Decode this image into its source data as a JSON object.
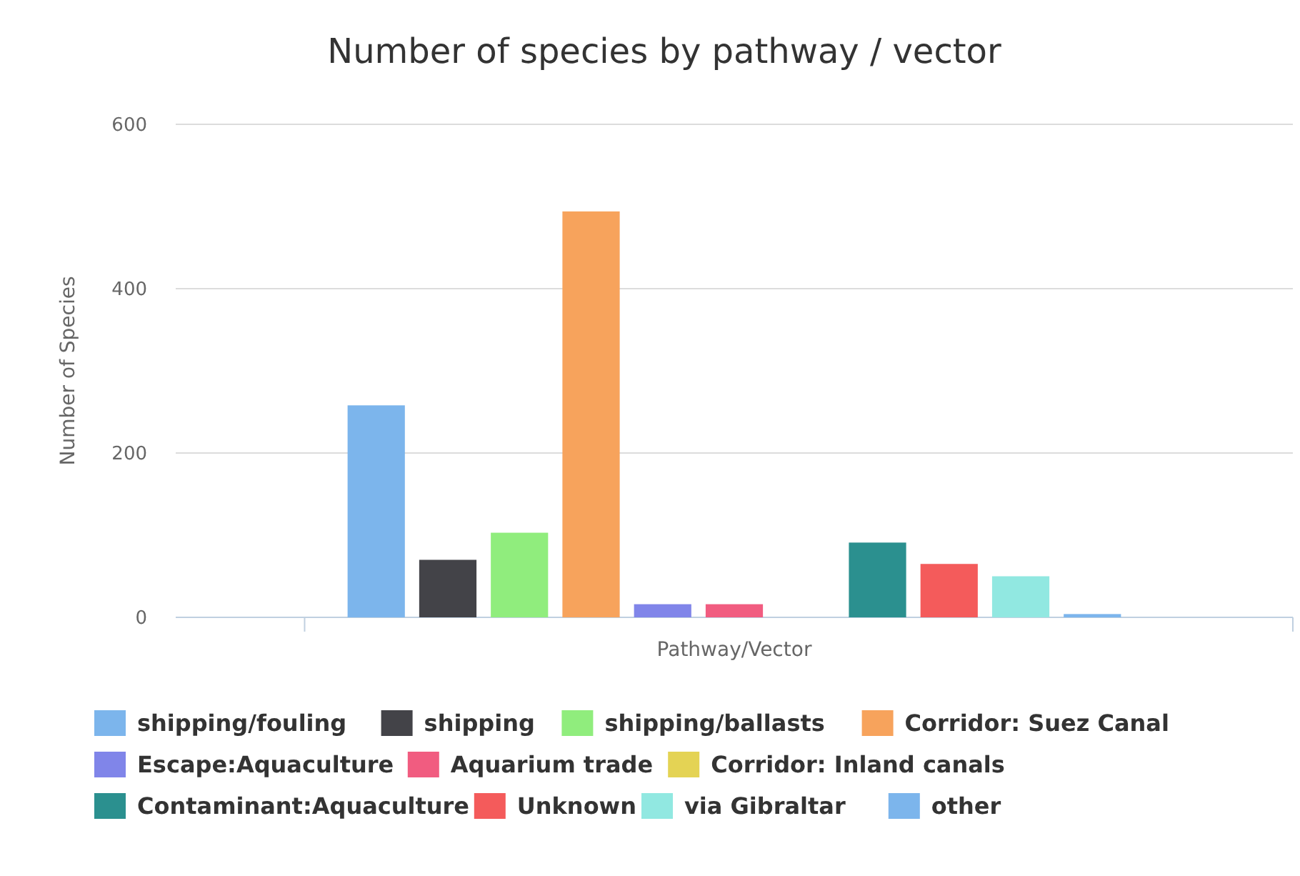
{
  "chart_data": {
    "type": "bar",
    "title": "Number of species by pathway / vector",
    "xlabel": "Pathway/Vector",
    "ylabel": "Number of Species",
    "categories": [
      null
    ],
    "ylim": [
      0,
      600
    ],
    "yticks": [
      0,
      200,
      400,
      600
    ],
    "grid": "y",
    "legend": "bottom",
    "series": [
      {
        "name": "shipping/fouling",
        "color": "#7cb5ec",
        "values": [
          258
        ]
      },
      {
        "name": "shipping",
        "color": "#434348",
        "values": [
          70
        ]
      },
      {
        "name": "shipping/ballasts",
        "color": "#90ed7d",
        "values": [
          103
        ]
      },
      {
        "name": "Corridor: Suez Canal",
        "color": "#f7a35c",
        "values": [
          494
        ]
      },
      {
        "name": "Escape:Aquaculture",
        "color": "#8085e9",
        "values": [
          16
        ]
      },
      {
        "name": "Aquarium trade",
        "color": "#f15c80",
        "values": [
          16
        ]
      },
      {
        "name": "Corridor: Inland canals",
        "color": "#e4d354",
        "values": [
          0
        ]
      },
      {
        "name": "Contaminant:Aquaculture",
        "color": "#2b908f",
        "values": [
          91
        ]
      },
      {
        "name": "Unknown",
        "color": "#f45b5b",
        "values": [
          65
        ]
      },
      {
        "name": "via Gibraltar",
        "color": "#91e8e1",
        "values": [
          50
        ]
      },
      {
        "name": "other",
        "color": "#7cb5ec",
        "values": [
          4
        ]
      }
    ]
  }
}
